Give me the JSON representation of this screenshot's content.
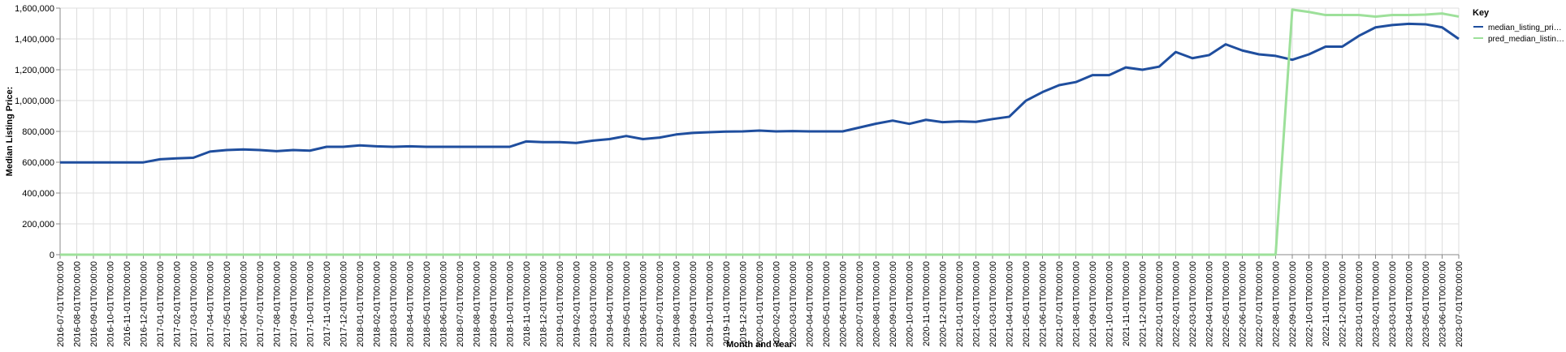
{
  "chart_data": {
    "type": "line",
    "xlabel": "Month and Year",
    "ylabel": "Median Listing Price:",
    "ylim": [
      0,
      1600000
    ],
    "yticks": [
      0,
      200000,
      400000,
      600000,
      800000,
      1000000,
      1200000,
      1400000,
      1600000
    ],
    "ytick_labels": [
      "0",
      "200,000",
      "400,000",
      "600,000",
      "800,000",
      "1,000,000",
      "1,200,000",
      "1,400,000",
      "1,600,000"
    ],
    "grid": true,
    "legend_title": "Key",
    "legend_position": "right",
    "x": [
      "2016-07-01T00:00:00",
      "2016-08-01T00:00:00",
      "2016-09-01T00:00:00",
      "2016-10-01T00:00:00",
      "2016-11-01T00:00:00",
      "2016-12-01T00:00:00",
      "2017-01-01T00:00:00",
      "2017-02-01T00:00:00",
      "2017-03-01T00:00:00",
      "2017-04-01T00:00:00",
      "2017-05-01T00:00:00",
      "2017-06-01T00:00:00",
      "2017-07-01T00:00:00",
      "2017-08-01T00:00:00",
      "2017-09-01T00:00:00",
      "2017-10-01T00:00:00",
      "2017-11-01T00:00:00",
      "2017-12-01T00:00:00",
      "2018-01-01T00:00:00",
      "2018-02-01T00:00:00",
      "2018-03-01T00:00:00",
      "2018-04-01T00:00:00",
      "2018-05-01T00:00:00",
      "2018-06-01T00:00:00",
      "2018-07-01T00:00:00",
      "2018-08-01T00:00:00",
      "2018-09-01T00:00:00",
      "2018-10-01T00:00:00",
      "2018-11-01T00:00:00",
      "2018-12-01T00:00:00",
      "2019-01-01T00:00:00",
      "2019-02-01T00:00:00",
      "2019-03-01T00:00:00",
      "2019-04-01T00:00:00",
      "2019-05-01T00:00:00",
      "2019-06-01T00:00:00",
      "2019-07-01T00:00:00",
      "2019-08-01T00:00:00",
      "2019-09-01T00:00:00",
      "2019-10-01T00:00:00",
      "2019-11-01T00:00:00",
      "2019-12-01T00:00:00",
      "2020-01-01T00:00:00",
      "2020-02-01T00:00:00",
      "2020-03-01T00:00:00",
      "2020-04-01T00:00:00",
      "2020-05-01T00:00:00",
      "2020-06-01T00:00:00",
      "2020-07-01T00:00:00",
      "2020-08-01T00:00:00",
      "2020-09-01T00:00:00",
      "2020-10-01T00:00:00",
      "2020-11-01T00:00:00",
      "2020-12-01T00:00:00",
      "2021-01-01T00:00:00",
      "2021-02-01T00:00:00",
      "2021-03-01T00:00:00",
      "2021-04-01T00:00:00",
      "2021-05-01T00:00:00",
      "2021-06-01T00:00:00",
      "2021-07-01T00:00:00",
      "2021-08-01T00:00:00",
      "2021-09-01T00:00:00",
      "2021-10-01T00:00:00",
      "2021-11-01T00:00:00",
      "2021-12-01T00:00:00",
      "2022-01-01T00:00:00",
      "2022-02-01T00:00:00",
      "2022-03-01T00:00:00",
      "2022-04-01T00:00:00",
      "2022-05-01T00:00:00",
      "2022-06-01T00:00:00",
      "2022-07-01T00:00:00",
      "2022-08-01T00:00:00",
      "2022-09-01T00:00:00",
      "2022-10-01T00:00:00",
      "2022-11-01T00:00:00",
      "2022-12-01T00:00:00",
      "2023-01-01T00:00:00",
      "2023-02-01T00:00:00",
      "2023-03-01T00:00:00",
      "2023-04-01T00:00:00",
      "2023-05-01T00:00:00",
      "2023-06-01T00:00:00",
      "2023-07-01T00:00:00"
    ],
    "series": [
      {
        "name": "median_listing_pri…",
        "color": "#1f4e9e",
        "values": [
          599000,
          599000,
          599000,
          599000,
          599000,
          599000,
          619000,
          625000,
          629000,
          669000,
          679000,
          683000,
          679000,
          672000,
          679000,
          675000,
          700000,
          700000,
          709000,
          703000,
          700000,
          703000,
          700000,
          700000,
          700000,
          700000,
          700000,
          700000,
          735000,
          730000,
          730000,
          725000,
          740000,
          750000,
          770000,
          750000,
          760000,
          780000,
          790000,
          795000,
          799000,
          800000,
          805000,
          800000,
          802000,
          800000,
          800000,
          800000,
          825000,
          850000,
          870000,
          849000,
          875000,
          860000,
          865000,
          862000,
          880000,
          895000,
          999000,
          1055000,
          1100000,
          1120000,
          1165000,
          1165000,
          1215000,
          1200000,
          1220000,
          1315000,
          1275000,
          1295000,
          1365000,
          1325000,
          1300000,
          1290000,
          1265000,
          1300000,
          1350000,
          1350000,
          1420000,
          1475000,
          1490000,
          1498000,
          1495000,
          1475000,
          1400000
        ]
      },
      {
        "name": "pred_median_listin…",
        "color": "#9de09a",
        "values": [
          0,
          0,
          0,
          0,
          0,
          0,
          0,
          0,
          0,
          0,
          0,
          0,
          0,
          0,
          0,
          0,
          0,
          0,
          0,
          0,
          0,
          0,
          0,
          0,
          0,
          0,
          0,
          0,
          0,
          0,
          0,
          0,
          0,
          0,
          0,
          0,
          0,
          0,
          0,
          0,
          0,
          0,
          0,
          0,
          0,
          0,
          0,
          0,
          0,
          0,
          0,
          0,
          0,
          0,
          0,
          0,
          0,
          0,
          0,
          0,
          0,
          0,
          0,
          0,
          0,
          0,
          0,
          0,
          0,
          0,
          0,
          0,
          0,
          0,
          1590000,
          1575000,
          1555000,
          1555000,
          1555000,
          1545000,
          1555000,
          1555000,
          1558000,
          1565000,
          1545000
        ]
      }
    ]
  }
}
